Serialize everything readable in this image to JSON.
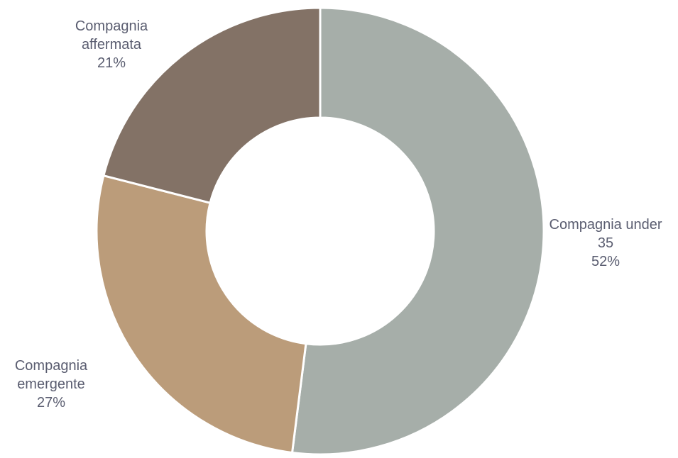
{
  "chart_data": {
    "type": "pie",
    "variant": "donut",
    "start_angle_deg": 0,
    "direction": "clockwise",
    "slices": [
      {
        "label": [
          "Compagnia under",
          "35"
        ],
        "value": 52,
        "display": "52%",
        "color": "#a6aea9"
      },
      {
        "label": [
          "Compagnia",
          "emergente"
        ],
        "value": 27,
        "display": "27%",
        "color": "#bb9c7a"
      },
      {
        "label": [
          "Compagnia",
          "affermata"
        ],
        "value": 21,
        "display": "21%",
        "color": "#837266"
      }
    ],
    "label_color": "#5a5d70",
    "background": "#ffffff"
  }
}
